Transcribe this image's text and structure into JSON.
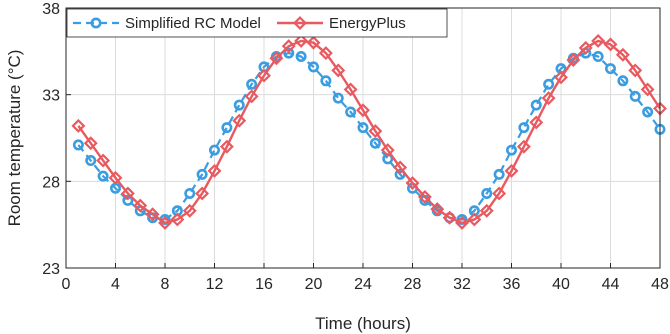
{
  "chart_data": {
    "type": "line",
    "xlabel": "Time (hours)",
    "ylabel": "Room temperature (°C)",
    "xlim": [
      0,
      48
    ],
    "ylim": [
      23,
      38
    ],
    "xticks": [
      0,
      4,
      8,
      12,
      16,
      20,
      24,
      28,
      32,
      36,
      40,
      44,
      48
    ],
    "yticks": [
      23,
      28,
      33,
      38
    ],
    "grid": true,
    "legend_position": "top-left",
    "x": [
      1,
      2,
      3,
      4,
      5,
      6,
      7,
      8,
      9,
      10,
      11,
      12,
      13,
      14,
      15,
      16,
      17,
      18,
      19,
      20,
      21,
      22,
      23,
      24,
      25,
      26,
      27,
      28,
      29,
      30,
      31,
      32,
      33,
      34,
      35,
      36,
      37,
      38,
      39,
      40,
      41,
      42,
      43,
      44,
      45,
      46,
      47,
      48
    ],
    "series": [
      {
        "name": "Simplified RC Model",
        "color": "#3B9DE1",
        "line_style": "dashed",
        "marker": "circle",
        "values": [
          30.1,
          29.2,
          28.3,
          27.6,
          26.9,
          26.3,
          25.9,
          25.8,
          26.3,
          27.3,
          28.4,
          29.8,
          31.1,
          32.4,
          33.6,
          34.6,
          35.2,
          35.4,
          35.2,
          34.6,
          33.8,
          32.8,
          32.0,
          31.1,
          30.2,
          29.3,
          28.4,
          27.6,
          26.9,
          26.3,
          25.9,
          25.8,
          26.3,
          27.3,
          28.4,
          29.8,
          31.1,
          32.4,
          33.6,
          34.5,
          35.1,
          35.4,
          35.2,
          34.5,
          33.8,
          32.9,
          32.0,
          31.0
        ]
      },
      {
        "name": "EnergyPlus",
        "color": "#E85A5F",
        "line_style": "solid",
        "marker": "diamond",
        "values": [
          31.2,
          30.2,
          29.2,
          28.2,
          27.3,
          26.6,
          26.1,
          25.6,
          25.8,
          26.3,
          27.3,
          28.6,
          30.0,
          31.5,
          32.9,
          34.1,
          35.1,
          35.8,
          36.1,
          36.0,
          35.4,
          34.4,
          33.3,
          32.1,
          30.9,
          29.8,
          28.8,
          27.9,
          27.1,
          26.4,
          25.9,
          25.6,
          25.8,
          26.3,
          27.3,
          28.6,
          30.0,
          31.4,
          32.8,
          34.0,
          35.0,
          35.7,
          36.1,
          35.9,
          35.3,
          34.4,
          33.3,
          32.2
        ]
      }
    ]
  }
}
